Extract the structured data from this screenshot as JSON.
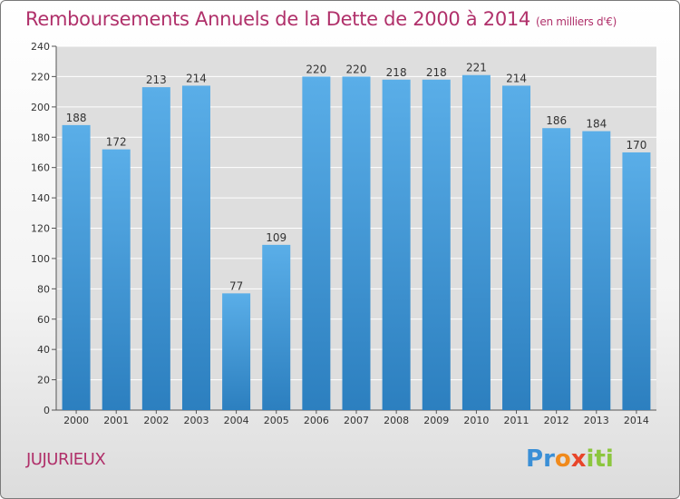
{
  "chart_data": {
    "type": "bar",
    "title": "Remboursements Annuels de la Dette de 2000 à 2014",
    "subtitle": "(en milliers d'€)",
    "categories": [
      "2000",
      "2001",
      "2002",
      "2003",
      "2004",
      "2005",
      "2006",
      "2007",
      "2008",
      "2009",
      "2010",
      "2011",
      "2012",
      "2013",
      "2014"
    ],
    "values": [
      188,
      172,
      213,
      214,
      77,
      109,
      220,
      220,
      218,
      218,
      221,
      214,
      186,
      184,
      170
    ],
    "ylim": [
      0,
      240
    ],
    "yticks": [
      0,
      20,
      40,
      60,
      80,
      100,
      120,
      140,
      160,
      180,
      200,
      220,
      240
    ],
    "grid": true,
    "bar_color": "#5aaee8",
    "bar_color_dark": "#2c7fbf"
  },
  "footer": {
    "commune": "JUJURIEUX",
    "logo_letters": [
      "P",
      "r",
      "o",
      "x",
      "i",
      "t",
      "i"
    ],
    "logo_colors": [
      "#3a8fd6",
      "#3a8fd6",
      "#f08a1c",
      "#e8452a",
      "#8cc63e",
      "#8cc63e",
      "#8cc63e"
    ]
  }
}
